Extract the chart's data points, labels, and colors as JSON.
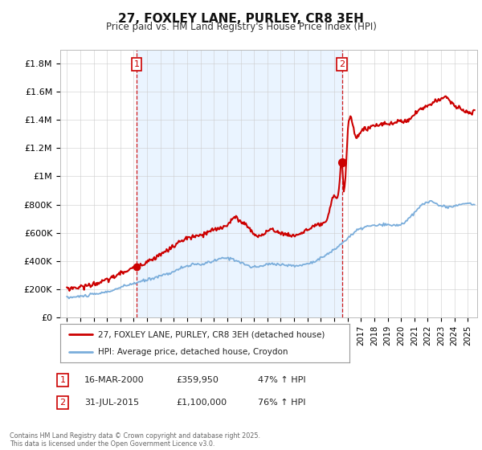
{
  "title": "27, FOXLEY LANE, PURLEY, CR8 3EH",
  "subtitle": "Price paid vs. HM Land Registry's House Price Index (HPI)",
  "sale1_date": "16-MAR-2000",
  "sale1_price": "£359,950",
  "sale1_hpi": "47% ↑ HPI",
  "sale1_year": 2000.21,
  "sale1_value": 359950,
  "sale2_date": "31-JUL-2015",
  "sale2_price": "£1,100,000",
  "sale2_hpi": "76% ↑ HPI",
  "sale2_year": 2015.58,
  "sale2_value": 1100000,
  "legend_line1": "27, FOXLEY LANE, PURLEY, CR8 3EH (detached house)",
  "legend_line2": "HPI: Average price, detached house, Croydon",
  "footnote": "Contains HM Land Registry data © Crown copyright and database right 2025.\nThis data is licensed under the Open Government Licence v3.0.",
  "red_color": "#cc0000",
  "blue_color": "#7aaddb",
  "shade_color": "#ddeeff",
  "background_color": "#ffffff",
  "plot_bg": "#ffffff",
  "ylim": [
    0,
    1900000
  ],
  "yticks": [
    0,
    200000,
    400000,
    600000,
    800000,
    1000000,
    1200000,
    1400000,
    1600000,
    1800000
  ],
  "ytick_labels": [
    "£0",
    "£200K",
    "£400K",
    "£600K",
    "£800K",
    "£1M",
    "£1.2M",
    "£1.4M",
    "£1.6M",
    "£1.8M"
  ],
  "xlim_start": 1994.5,
  "xlim_end": 2025.7
}
